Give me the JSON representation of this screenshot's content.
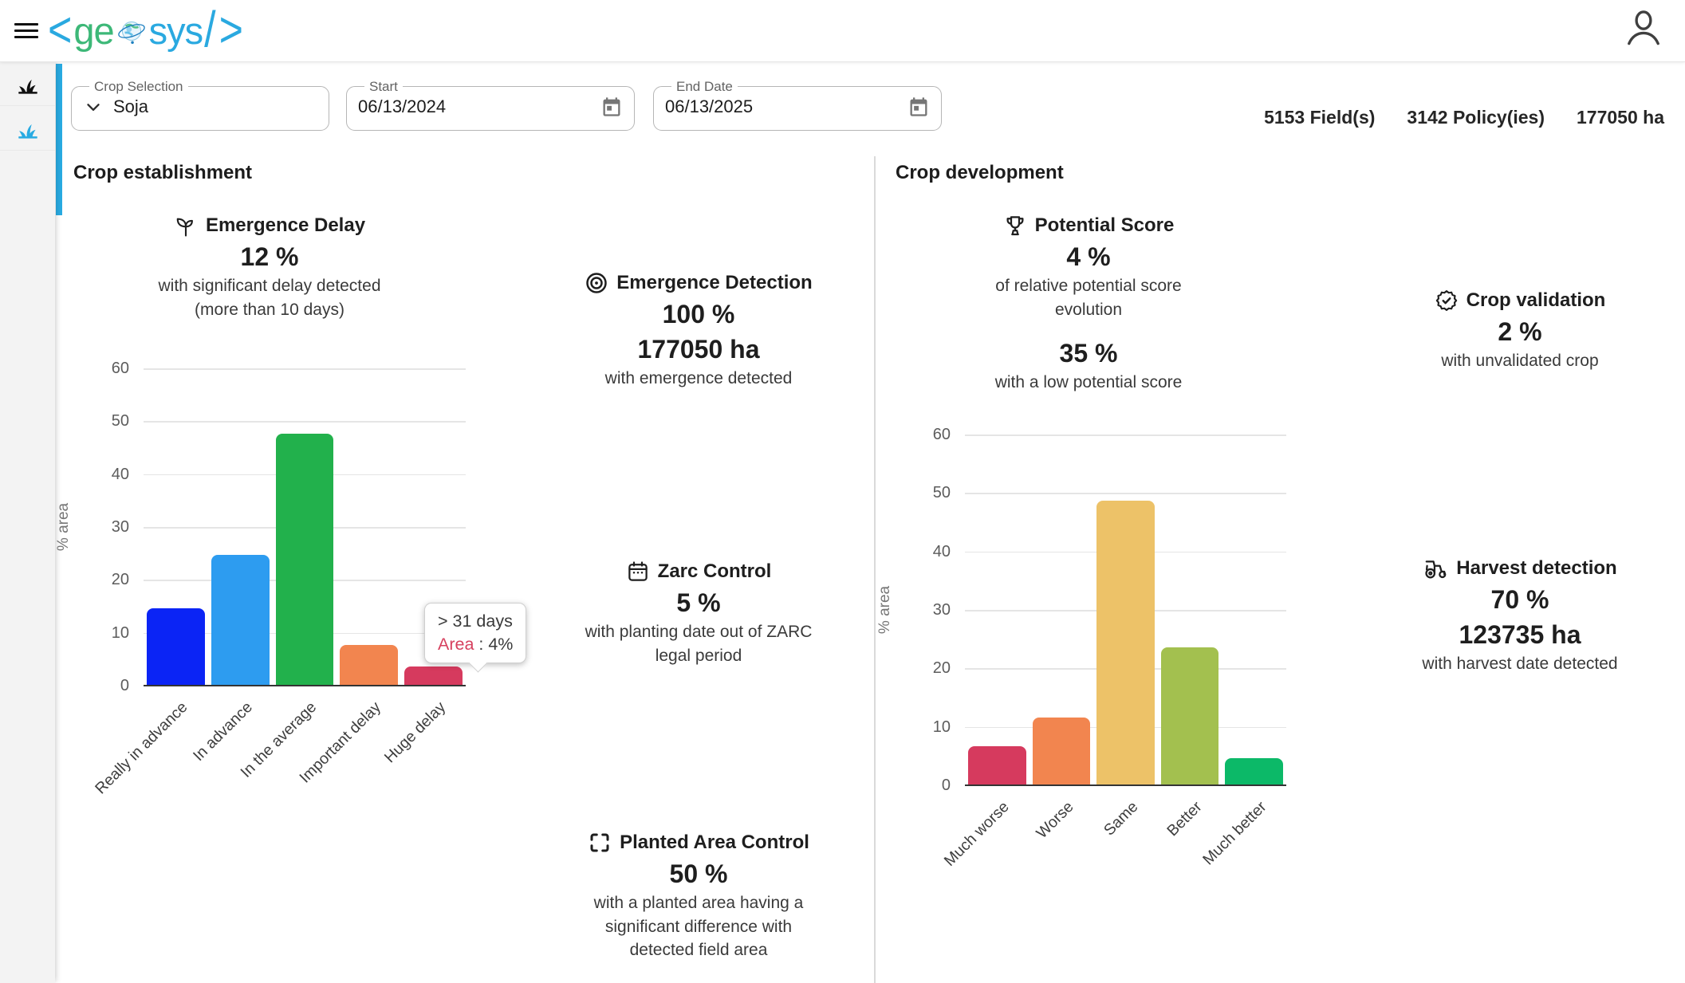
{
  "brand": {
    "open": "<",
    "ge": "ge",
    "sys": "sys",
    "slash": "/",
    "close": ">"
  },
  "filters": {
    "crop_selection": {
      "label": "Crop Selection",
      "value": "Soja"
    },
    "start": {
      "label": "Start",
      "value": "06/13/2024"
    },
    "end_date": {
      "label": "End Date",
      "value": "06/13/2025"
    }
  },
  "summary": {
    "fields": "5153 Field(s)",
    "policies": "3142 Policy(ies)",
    "area": "177050 ha"
  },
  "establishment": {
    "title": "Crop establishment",
    "emergence_delay": {
      "title": "Emergence Delay",
      "value": "12 %",
      "desc": [
        "with significant delay detected",
        "(more than 10 days)"
      ]
    },
    "emergence_detection": {
      "title": "Emergence Detection",
      "value1": "100 %",
      "value2": "177050 ha",
      "desc": [
        "with emergence detected"
      ]
    },
    "zarc_control": {
      "title": "Zarc Control",
      "value": "5 %",
      "desc": [
        "with planting date out of ZARC",
        "legal period"
      ]
    },
    "planted_area_control": {
      "title": "Planted Area Control",
      "value": "50 %",
      "desc": [
        "with a planted area having a",
        "significant difference with",
        "detected field area"
      ]
    }
  },
  "development": {
    "title": "Crop development",
    "potential_score": {
      "title": "Potential Score",
      "value1": "4 %",
      "desc1": [
        "of relative potential score",
        "evolution"
      ],
      "value2": "35 %",
      "desc2": [
        "with a low potential score"
      ]
    },
    "crop_validation": {
      "title": "Crop validation",
      "value": "2 %",
      "desc": [
        "with unvalidated crop"
      ]
    },
    "harvest_detection": {
      "title": "Harvest detection",
      "value1": "70 %",
      "value2": "123735 ha",
      "desc": [
        "with harvest date detected"
      ]
    }
  },
  "chart_data": [
    {
      "type": "bar",
      "title": "Emergence Delay",
      "categories": [
        "Really in advance",
        "In advance",
        "In the average",
        "Important delay",
        "Huge delay"
      ],
      "values": [
        14.5,
        24.5,
        47.5,
        7.5,
        3.5
      ],
      "colors": [
        "#0b24f5",
        "#2d9cf0",
        "#22b14c",
        "#f2854f",
        "#d63a5e"
      ],
      "xlabel": "",
      "ylabel": "% area",
      "ylim": [
        0,
        60
      ],
      "yticks": [
        0,
        10,
        20,
        30,
        40,
        50,
        60
      ],
      "grid": "horizontal",
      "legend": "none",
      "tooltip": {
        "title": "> 31 days",
        "label": "Area",
        "rest": " : 4%"
      }
    },
    {
      "type": "bar",
      "title": "Potential Score",
      "categories": [
        "Much worse",
        "Worse",
        "Same",
        "Better",
        "Much better"
      ],
      "values": [
        6.5,
        11.5,
        48.5,
        23.5,
        4.5
      ],
      "colors": [
        "#d63a5e",
        "#f2854f",
        "#edc268",
        "#a3c04f",
        "#0cb968"
      ],
      "xlabel": "",
      "ylabel": "% area",
      "ylim": [
        0,
        60
      ],
      "yticks": [
        0,
        10,
        20,
        30,
        40,
        50,
        60
      ],
      "grid": "horizontal",
      "legend": "none"
    }
  ],
  "colors": {
    "brand_green": "#3db878",
    "brand_blue": "#2aa9e0",
    "sidebar_active_icon": "#29abe2"
  }
}
